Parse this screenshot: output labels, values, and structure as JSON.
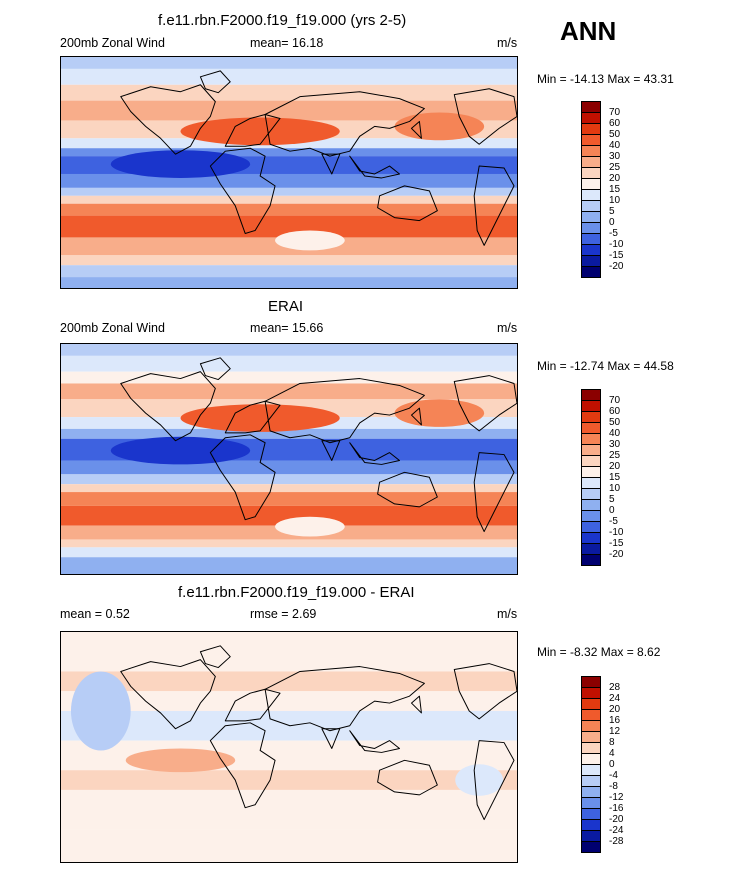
{
  "season": "ANN",
  "panels": [
    {
      "title": "f.e11.rbn.F2000.f19_f19.000 (yrs 2-5)",
      "left_label": "200mb Zonal Wind",
      "center_label": "mean=  16.18",
      "units": "m/s",
      "minmax": "Min = -14.13 Max =  43.31",
      "colorbar": {
        "labels": [
          "70",
          "60",
          "50",
          "40",
          "30",
          "25",
          "20",
          "15",
          "10",
          "5",
          "0",
          "-5",
          "-10",
          "-15",
          "-20"
        ],
        "colors": [
          "#8b0000",
          "#c01000",
          "#e23a10",
          "#f05a2c",
          "#f58456",
          "#f8ad8a",
          "#fbd5c0",
          "#fdf1ea",
          "#dce8fb",
          "#b7cdf6",
          "#8fb0f0",
          "#6a90ea",
          "#3e62e0",
          "#1a35cc",
          "#0a1aa0",
          "#000070"
        ]
      },
      "map_style": "model"
    },
    {
      "title": "ERAI",
      "left_label": "200mb Zonal Wind",
      "center_label": "mean=  15.66",
      "units": "m/s",
      "minmax": "Min = -12.74 Max =  44.58",
      "colorbar": {
        "labels": [
          "70",
          "60",
          "50",
          "40",
          "30",
          "25",
          "20",
          "15",
          "10",
          "5",
          "0",
          "-5",
          "-10",
          "-15",
          "-20"
        ],
        "colors": [
          "#8b0000",
          "#c01000",
          "#e23a10",
          "#f05a2c",
          "#f58456",
          "#f8ad8a",
          "#fbd5c0",
          "#fdf1ea",
          "#dce8fb",
          "#b7cdf6",
          "#8fb0f0",
          "#6a90ea",
          "#3e62e0",
          "#1a35cc",
          "#0a1aa0",
          "#000070"
        ]
      },
      "map_style": "obs"
    },
    {
      "title": "f.e11.rbn.F2000.f19_f19.000 - ERAI",
      "left_label": "mean =   0.52",
      "center_label": "rmse =   2.69",
      "units": "m/s",
      "minmax": "Min =  -8.32 Max =   8.62",
      "colorbar": {
        "labels": [
          "28",
          "24",
          "20",
          "16",
          "12",
          "8",
          "4",
          "0",
          "-4",
          "-8",
          "-12",
          "-16",
          "-20",
          "-24",
          "-28"
        ],
        "colors": [
          "#8b0000",
          "#c01000",
          "#e23a10",
          "#f05a2c",
          "#f58456",
          "#f8ad8a",
          "#fbd5c0",
          "#fdf1ea",
          "#dce8fb",
          "#b7cdf6",
          "#8fb0f0",
          "#6a90ea",
          "#3e62e0",
          "#1a35cc",
          "#0a1aa0",
          "#000070"
        ]
      },
      "map_style": "diff"
    }
  ]
}
